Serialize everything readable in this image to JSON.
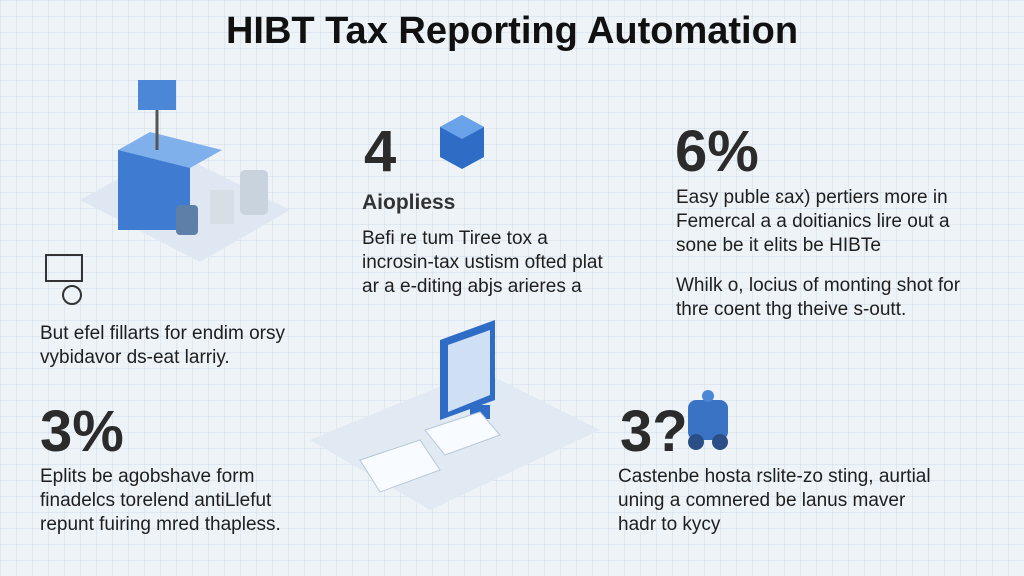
{
  "header": {
    "title": "HIBT Tax Reporting Automation"
  },
  "blocks": [
    {
      "stat": "4",
      "heading": "Aiopliess",
      "lines": [
        "Befi re tum Tiree tox a",
        "incrosin-tax ustism ofted plat",
        "ar a e-diting abjs arieres a"
      ]
    },
    {
      "stat": "6%",
      "lines": [
        "Easy puble ɛax) pertiers more in",
        "Femercal a a doitianics lire out a",
        "sone be it elits be HIBTe",
        "Whilk o, locius of monting shot for",
        "thre coent thg theive s-outt."
      ]
    },
    {
      "lines": [
        "But efel fillarts for endim orsy",
        "vybidavor ds-eat larriy."
      ]
    },
    {
      "stat": "3%",
      "lines": [
        "Eplits be agobshave form",
        "finadelcs torelend antiLlefut",
        "repunt fuiring mred thapless."
      ]
    },
    {
      "stat": "3?",
      "lines": [
        "Castenbe hosta rslite-zo sting, aurtial",
        "uning a comnered be lanus maver",
        "hadr to kycy"
      ]
    }
  ]
}
